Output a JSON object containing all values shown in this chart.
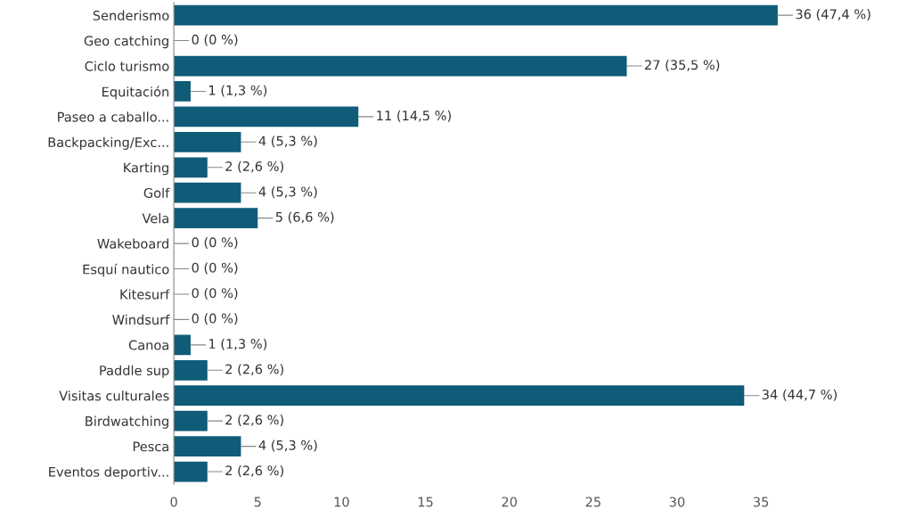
{
  "chart_data": {
    "type": "bar",
    "orientation": "horizontal",
    "categories": [
      "Senderismo",
      "Geo catching",
      "Ciclo turismo",
      "Equitación",
      "Paseo a caballo...",
      "Backpacking/Exc...",
      "Karting",
      "Golf",
      "Vela",
      "Wakeboard",
      "Esquí nautico",
      "Kitesurf",
      "Windsurf",
      "Canoa",
      "Paddle sup",
      "Visitas culturales",
      "Birdwatching",
      "Pesca",
      "Eventos deportiv..."
    ],
    "values": [
      36,
      0,
      27,
      1,
      11,
      4,
      2,
      4,
      5,
      0,
      0,
      0,
      0,
      1,
      2,
      34,
      2,
      4,
      2
    ],
    "value_labels": [
      "36 (47,4 %)",
      "0 (0 %)",
      "27 (35,5 %)",
      "1 (1,3 %)",
      "11 (14,5 %)",
      "4 (5,3 %)",
      "2 (2,6 %)",
      "4 (5,3 %)",
      "5 (6,6 %)",
      "0 (0 %)",
      "0 (0 %)",
      "0 (0 %)",
      "0 (0 %)",
      "1 (1,3 %)",
      "2 (2,6 %)",
      "34 (44,7 %)",
      "2 (2,6 %)",
      "4 (5,3 %)",
      "2 (2,6 %)"
    ],
    "color": "#0f5b78",
    "xlim": [
      0,
      36
    ],
    "xticks": [
      0,
      5,
      10,
      15,
      20,
      25,
      30,
      35
    ],
    "grid": false,
    "legend": false
  }
}
